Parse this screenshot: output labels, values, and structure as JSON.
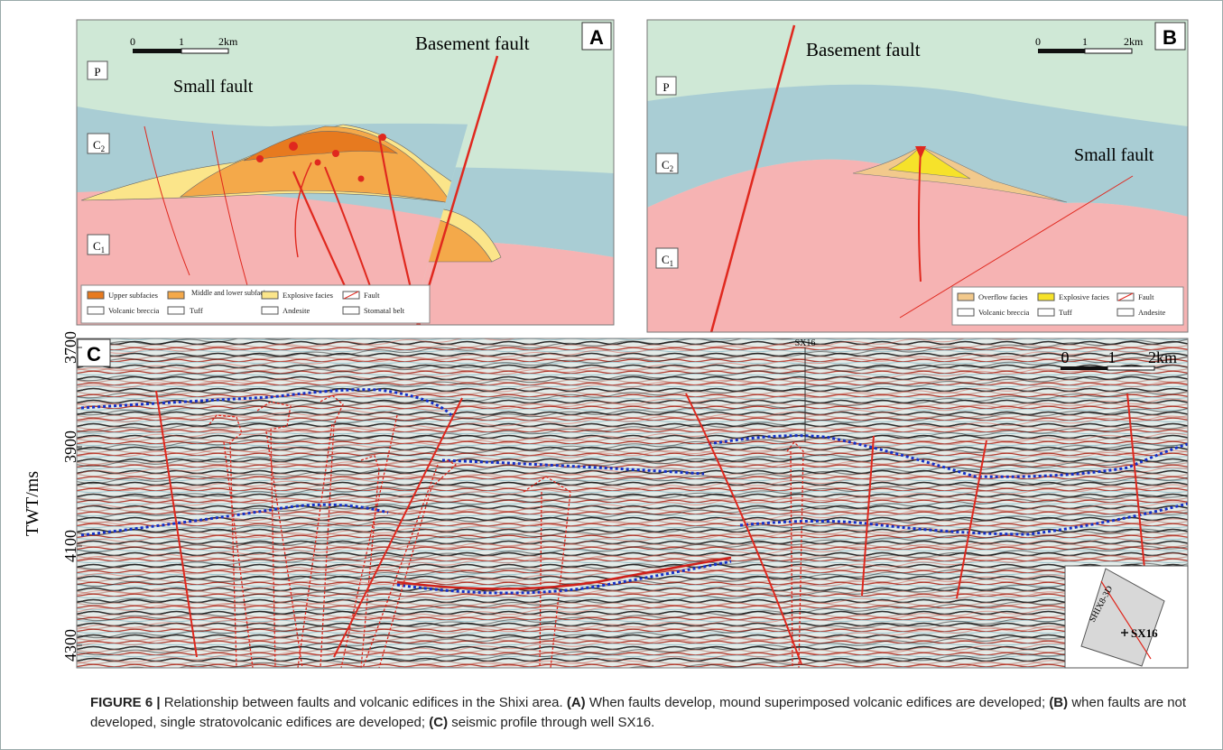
{
  "figure": {
    "panel_a": {
      "label": "A",
      "scale": [
        "0",
        "1",
        "2km"
      ],
      "layers": {
        "p": "P",
        "c2": {
          "base": "C",
          "sub": "2"
        },
        "c1": {
          "base": "C",
          "sub": "1"
        }
      },
      "small_fault": "Small fault",
      "basement_fault": "Basement fault",
      "legend": [
        "Upper subfacies",
        "Middle and lower subfacies",
        "Explosive facies",
        "Fault",
        "Volcanic breccia",
        "Tuff",
        "Andesite",
        "Stomatal belt"
      ]
    },
    "panel_b": {
      "label": "B",
      "scale": [
        "0",
        "1",
        "2km"
      ],
      "layers": {
        "p": "P",
        "c2": {
          "base": "C",
          "sub": "2"
        },
        "c1": {
          "base": "C",
          "sub": "1"
        }
      },
      "small_fault": "Small fault",
      "basement_fault": "Basement fault",
      "legend": [
        "Overflow facies",
        "Explosive facies",
        "Fault",
        "Volcanic breccia",
        "Tuff",
        "Andesite"
      ]
    },
    "panel_c": {
      "label": "C",
      "y_axis_label": "TWT/ms",
      "yticks": [
        3700,
        3900,
        4100,
        4300
      ],
      "well": "SX16",
      "scale": [
        "0",
        "1",
        "2km"
      ],
      "inset": {
        "survey": "SHIX8-3D",
        "well": "SX16"
      }
    }
  },
  "caption": {
    "figure_label": "FIGURE 6 |",
    "title": "Relationship between faults and volcanic edifices in the Shixi area.",
    "a_label": "(A)",
    "a_text": "When faults develop, mound superimposed volcanic edifices are developed;",
    "b_label": "(B)",
    "b_text": "when faults are not developed, single stratovolcanic edifices are developed;",
    "c_label": "(C)",
    "c_text": "seismic profile through well SX16."
  }
}
